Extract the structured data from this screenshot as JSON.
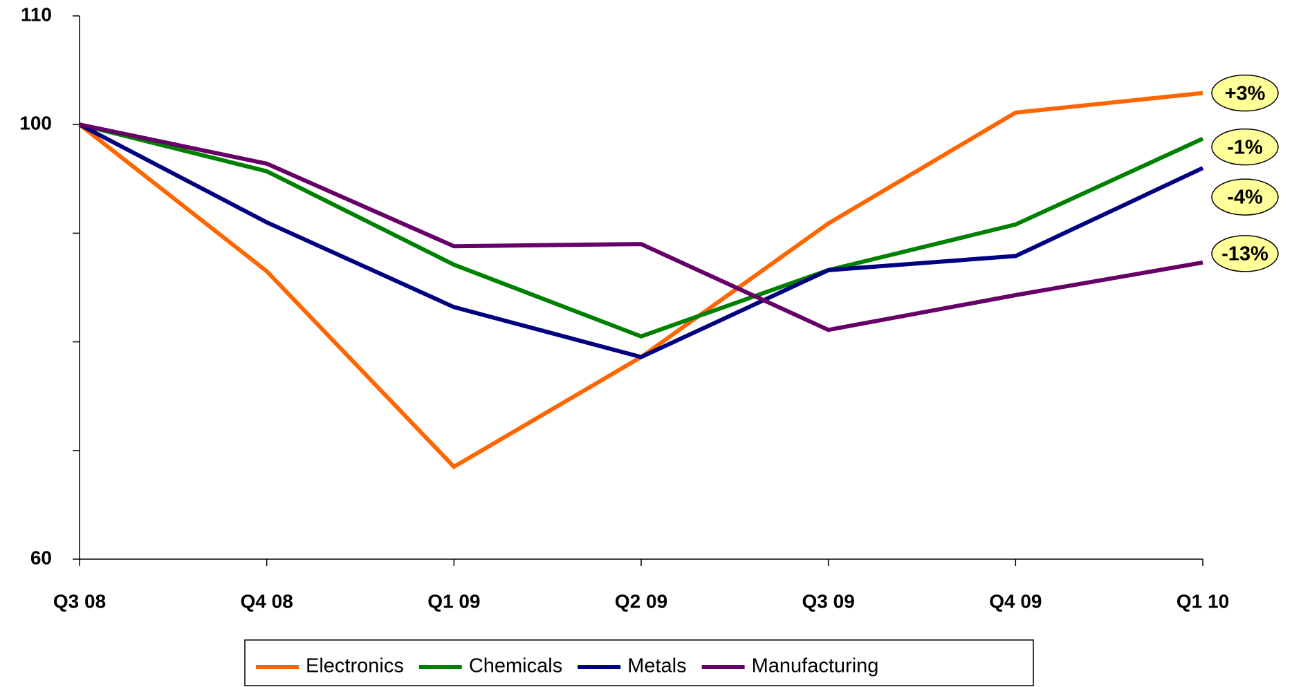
{
  "chart_data": {
    "type": "line",
    "categories": [
      "Q3 08",
      "Q4 08",
      "Q1 09",
      "Q2 09",
      "Q3 09",
      "Q4 09",
      "Q1 10"
    ],
    "series": [
      {
        "name": "Electronics",
        "color": "#ff6600",
        "values": [
          100,
          86.5,
          68.5,
          78.6,
          90.9,
          101.1,
          102.9
        ],
        "end_label": "+3%"
      },
      {
        "name": "Chemicals",
        "color": "#008000",
        "values": [
          100,
          95.7,
          87.1,
          80.5,
          86.6,
          90.8,
          98.7
        ],
        "end_label": "-1%"
      },
      {
        "name": "Metals",
        "color": "#000080",
        "values": [
          100,
          91.0,
          83.2,
          78.6,
          86.6,
          87.9,
          96.0
        ],
        "end_label": "-4%"
      },
      {
        "name": "Manufacturing",
        "color": "#660066",
        "values": [
          100,
          96.4,
          88.8,
          89.0,
          81.1,
          84.3,
          87.3
        ],
        "end_label": "-13%"
      }
    ],
    "ylim": [
      60,
      110
    ],
    "yticks": [
      60,
      100,
      110
    ],
    "yminor_ticks": [
      70,
      80,
      90
    ],
    "grid": false,
    "legend": "bottom",
    "label_fill": "#ffff99"
  }
}
